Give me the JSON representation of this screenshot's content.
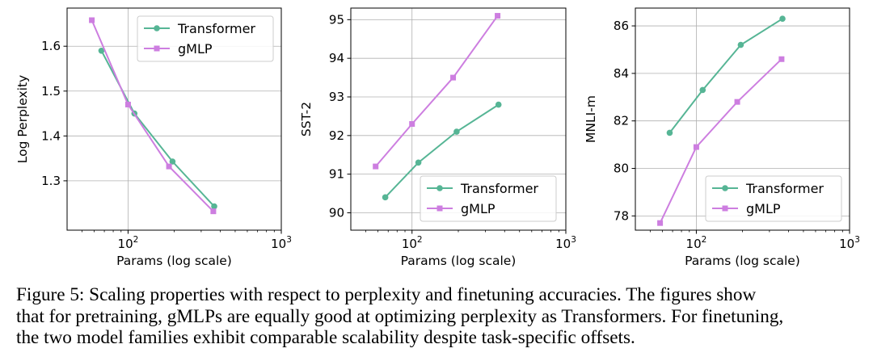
{
  "chart_data": [
    {
      "type": "line",
      "xscale": "log",
      "xlim": [
        40,
        1000
      ],
      "ylim": [
        1.19,
        1.685
      ],
      "yticks": [
        1.3,
        1.4,
        1.5,
        1.6
      ],
      "ytick_labels": [
        "1.3",
        "1.4",
        "1.5",
        "1.6"
      ],
      "xticks": [
        100,
        1000
      ],
      "xtick_labels": [
        {
          "base": "10",
          "exp": "2"
        },
        {
          "base": "10",
          "exp": "3"
        }
      ],
      "xlabel": "Params (log scale)",
      "ylabel": "Log Perplexity",
      "grid": true,
      "legend_position": "upper-right",
      "series": [
        {
          "name": "Transformer",
          "color": "#56b595",
          "marker": "circle",
          "x": [
            67,
            110,
            195,
            365
          ],
          "y": [
            1.59,
            1.45,
            1.343,
            1.243
          ]
        },
        {
          "name": "gMLP",
          "color": "#cd7ee0",
          "marker": "square",
          "x": [
            58,
            100,
            185,
            360
          ],
          "y": [
            1.658,
            1.47,
            1.332,
            1.232
          ]
        }
      ]
    },
    {
      "type": "line",
      "xscale": "log",
      "xlim": [
        40,
        1000
      ],
      "ylim": [
        89.55,
        95.3
      ],
      "yticks": [
        90,
        91,
        92,
        93,
        94,
        95
      ],
      "ytick_labels": [
        "90",
        "91",
        "92",
        "93",
        "94",
        "95"
      ],
      "xticks": [
        100,
        1000
      ],
      "xtick_labels": [
        {
          "base": "10",
          "exp": "2"
        },
        {
          "base": "10",
          "exp": "3"
        }
      ],
      "xlabel": "Params (log scale)",
      "ylabel": "SST-2",
      "grid": true,
      "legend_position": "lower-right",
      "series": [
        {
          "name": "Transformer",
          "color": "#56b595",
          "marker": "circle",
          "x": [
            67,
            110,
            195,
            365
          ],
          "y": [
            90.4,
            91.3,
            92.1,
            92.8
          ]
        },
        {
          "name": "gMLP",
          "color": "#cd7ee0",
          "marker": "square",
          "x": [
            58,
            100,
            185,
            360
          ],
          "y": [
            91.2,
            92.3,
            93.5,
            95.1
          ]
        }
      ]
    },
    {
      "type": "line",
      "xscale": "log",
      "xlim": [
        40,
        1000
      ],
      "ylim": [
        77.4,
        86.75
      ],
      "yticks": [
        78,
        80,
        82,
        84,
        86
      ],
      "ytick_labels": [
        "78",
        "80",
        "82",
        "84",
        "86"
      ],
      "xticks": [
        100,
        1000
      ],
      "xtick_labels": [
        {
          "base": "10",
          "exp": "2"
        },
        {
          "base": "10",
          "exp": "3"
        }
      ],
      "xlabel": "Params (log scale)",
      "ylabel": "MNLI-m",
      "grid": true,
      "legend_position": "lower-right",
      "series": [
        {
          "name": "Transformer",
          "color": "#56b595",
          "marker": "circle",
          "x": [
            67,
            110,
            195,
            365
          ],
          "y": [
            81.5,
            83.3,
            85.2,
            86.3
          ]
        },
        {
          "name": "gMLP",
          "color": "#cd7ee0",
          "marker": "square",
          "x": [
            58,
            100,
            185,
            360
          ],
          "y": [
            77.7,
            80.9,
            82.8,
            84.6
          ]
        }
      ]
    }
  ],
  "caption": {
    "lines": [
      "Figure 5: Scaling properties with respect to perplexity and finetuning accuracies. The figures show",
      "that for pretraining, gMLPs are equally good at optimizing perplexity as Transformers. For finetuning,",
      "the two model families exhibit comparable scalability despite task-specific offsets."
    ]
  }
}
